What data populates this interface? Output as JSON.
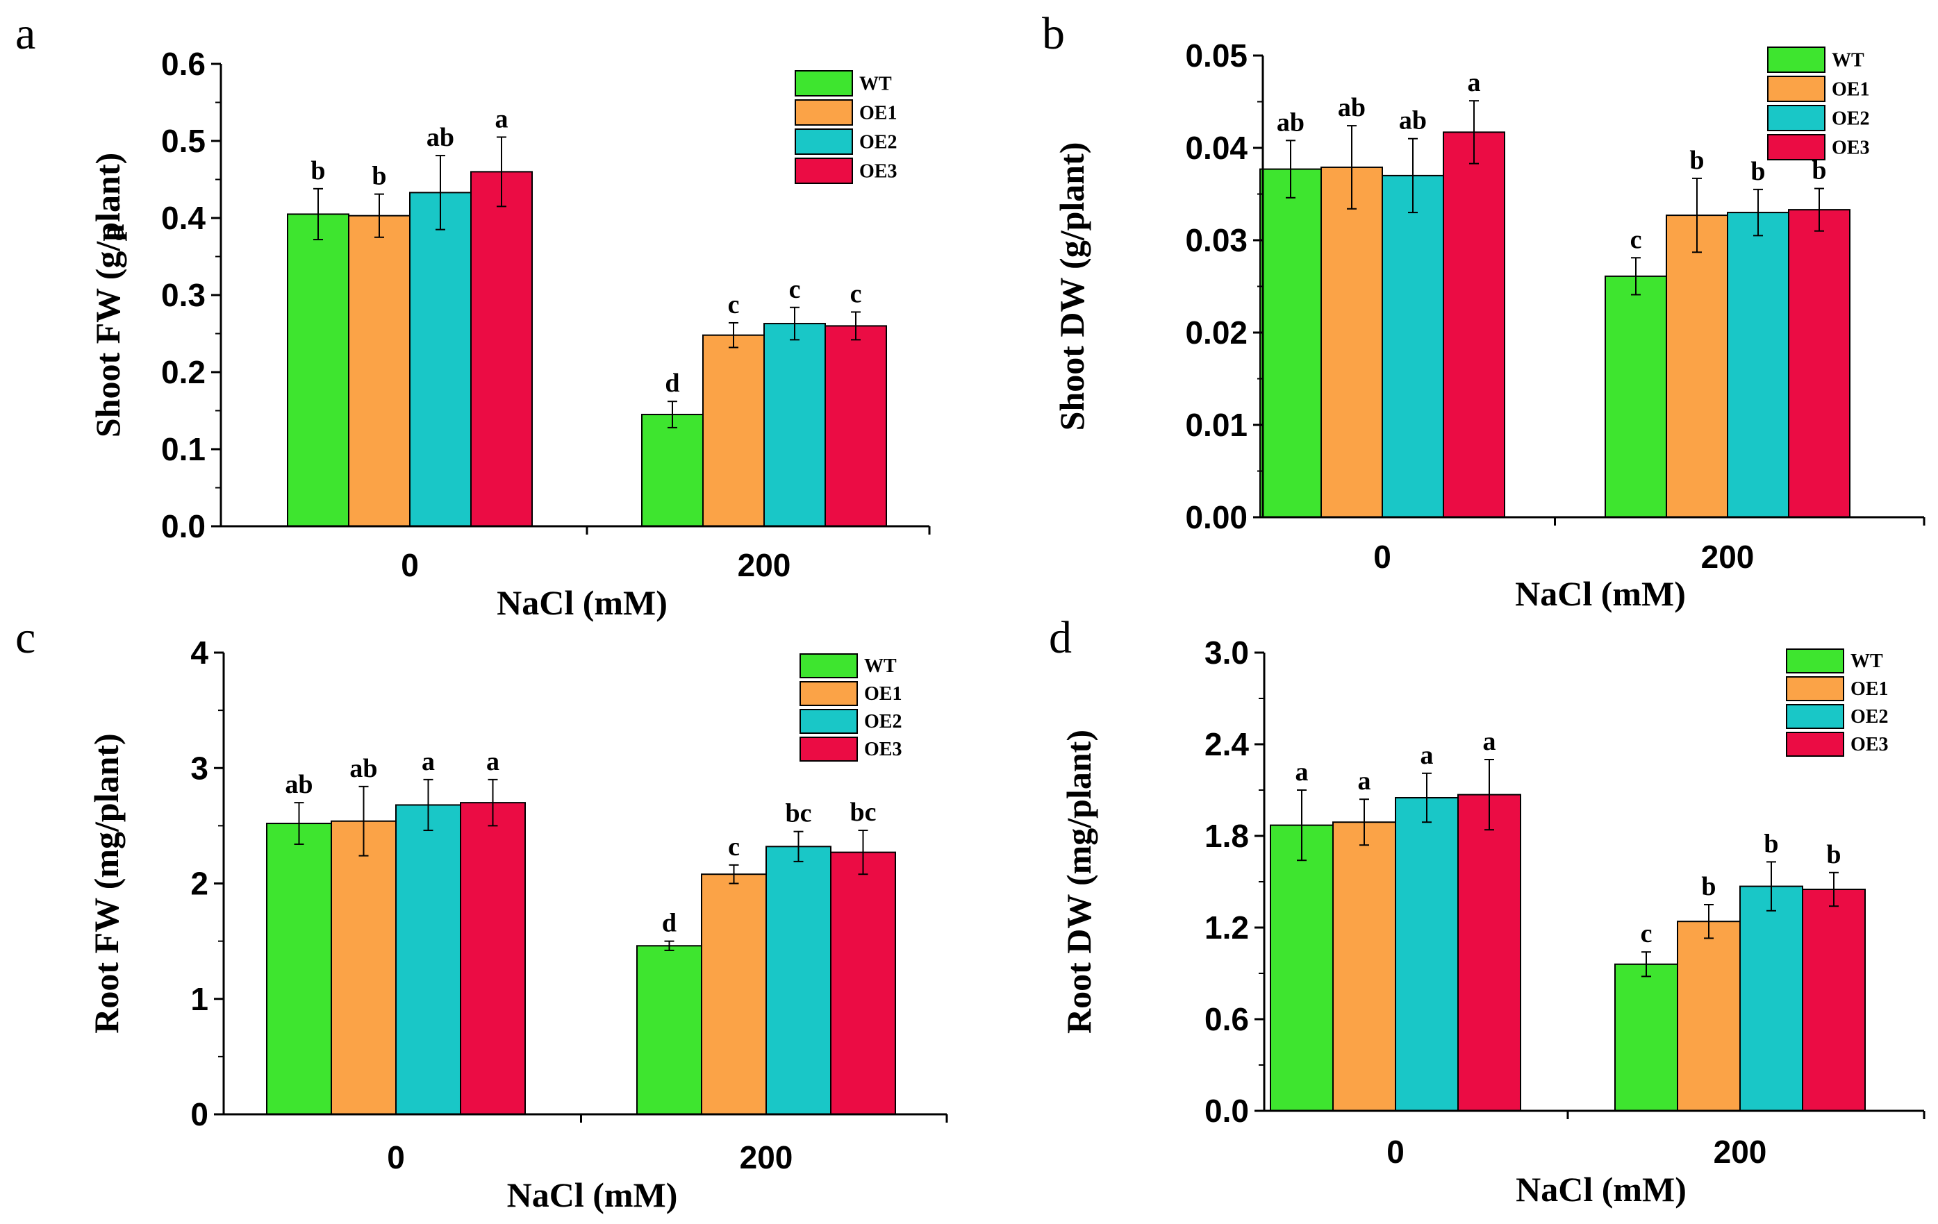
{
  "chart_data": [
    {
      "type": "bar",
      "panel": "a",
      "xlabel": "NaCl (mM)",
      "ylabel": "Shoot FW (g/plant)",
      "categories": [
        "0",
        "200"
      ],
      "ylim": [
        0,
        0.6
      ],
      "yticks": [
        "0.0",
        "0.1",
        "0.2",
        "0.3",
        "0.4",
        "0.5",
        "0.6"
      ],
      "legend_position": "top-right",
      "series": [
        {
          "name": "WT",
          "color": "#3ee52f",
          "values": [
            0.405,
            0.145
          ],
          "errors": [
            0.033,
            0.017
          ],
          "labels": [
            "b",
            "d"
          ]
        },
        {
          "name": "OE1",
          "color": "#fba347",
          "values": [
            0.403,
            0.248
          ],
          "errors": [
            0.028,
            0.016
          ],
          "labels": [
            "b",
            "c"
          ]
        },
        {
          "name": "OE2",
          "color": "#19c7c7",
          "values": [
            0.433,
            0.263
          ],
          "errors": [
            0.048,
            0.021
          ],
          "labels": [
            "ab",
            "c"
          ]
        },
        {
          "name": "OE3",
          "color": "#eb0c44",
          "values": [
            0.46,
            0.26
          ],
          "errors": [
            0.045,
            0.018
          ],
          "labels": [
            "a",
            "c"
          ]
        }
      ]
    },
    {
      "type": "bar",
      "panel": "b",
      "xlabel": "NaCl (mM)",
      "ylabel": "Shoot DW (g/plant)",
      "categories": [
        "0",
        "200"
      ],
      "ylim": [
        0,
        0.05
      ],
      "yticks": [
        "0.00",
        "0.01",
        "0.02",
        "0.03",
        "0.04",
        "0.05"
      ],
      "legend_position": "top-right",
      "series": [
        {
          "name": "WT",
          "color": "#3ee52f",
          "values": [
            0.0377,
            0.0261
          ],
          "errors": [
            0.0031,
            0.002
          ],
          "labels": [
            "ab",
            "c"
          ]
        },
        {
          "name": "OE1",
          "color": "#fba347",
          "values": [
            0.0379,
            0.0327
          ],
          "errors": [
            0.0045,
            0.004
          ],
          "labels": [
            "ab",
            "b"
          ]
        },
        {
          "name": "OE2",
          "color": "#19c7c7",
          "values": [
            0.037,
            0.033
          ],
          "errors": [
            0.004,
            0.0025
          ],
          "labels": [
            "ab",
            "b"
          ]
        },
        {
          "name": "OE3",
          "color": "#eb0c44",
          "values": [
            0.0417,
            0.0333
          ],
          "errors": [
            0.0034,
            0.0023
          ],
          "labels": [
            "a",
            "b"
          ]
        }
      ]
    },
    {
      "type": "bar",
      "panel": "c",
      "xlabel": "NaCl (mM)",
      "ylabel": "Root FW (mg/plant)",
      "categories": [
        "0",
        "200"
      ],
      "ylim": [
        0,
        4
      ],
      "yticks": [
        "0",
        "1",
        "2",
        "3",
        "4"
      ],
      "legend_position": "top-right",
      "series": [
        {
          "name": "WT",
          "color": "#3ee52f",
          "values": [
            2.52,
            1.46
          ],
          "errors": [
            0.18,
            0.04
          ],
          "labels": [
            "ab",
            "d"
          ]
        },
        {
          "name": "OE1",
          "color": "#fba347",
          "values": [
            2.54,
            2.08
          ],
          "errors": [
            0.3,
            0.08
          ],
          "labels": [
            "ab",
            "c"
          ]
        },
        {
          "name": "OE2",
          "color": "#19c7c7",
          "values": [
            2.68,
            2.32
          ],
          "errors": [
            0.22,
            0.13
          ],
          "labels": [
            "a",
            "bc"
          ]
        },
        {
          "name": "OE3",
          "color": "#eb0c44",
          "values": [
            2.7,
            2.27
          ],
          "errors": [
            0.2,
            0.19
          ],
          "labels": [
            "a",
            "bc"
          ]
        }
      ]
    },
    {
      "type": "bar",
      "panel": "d",
      "xlabel": "NaCl (mM)",
      "ylabel": "Root DW (mg/plant)",
      "categories": [
        "0",
        "200"
      ],
      "ylim": [
        0,
        3.0
      ],
      "yticks": [
        "0.0",
        "0.6",
        "1.2",
        "1.8",
        "2.4",
        "3.0"
      ],
      "legend_position": "top-right",
      "series": [
        {
          "name": "WT",
          "color": "#3ee52f",
          "values": [
            1.87,
            0.96
          ],
          "errors": [
            0.23,
            0.08
          ],
          "labels": [
            "a",
            "c"
          ]
        },
        {
          "name": "OE1",
          "color": "#fba347",
          "values": [
            1.89,
            1.24
          ],
          "errors": [
            0.15,
            0.11
          ],
          "labels": [
            "a",
            "b"
          ]
        },
        {
          "name": "OE2",
          "color": "#19c7c7",
          "values": [
            2.05,
            1.47
          ],
          "errors": [
            0.16,
            0.16
          ],
          "labels": [
            "a",
            "b"
          ]
        },
        {
          "name": "OE3",
          "color": "#eb0c44",
          "values": [
            2.07,
            1.45
          ],
          "errors": [
            0.23,
            0.11
          ],
          "labels": [
            "a",
            "b"
          ]
        }
      ]
    }
  ],
  "stray_label": "a"
}
